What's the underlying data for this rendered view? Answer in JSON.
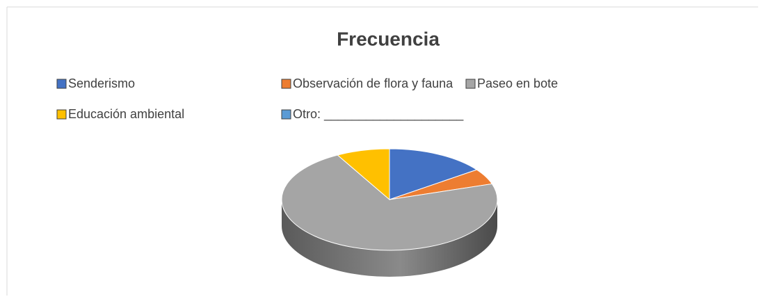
{
  "chart_data": {
    "type": "pie",
    "title": "Frecuencia",
    "categories": [
      "Senderismo",
      "Observación de flora y fauna",
      "Paseo en bote",
      "Educación ambiental",
      "Otro: ____________________"
    ],
    "values": [
      15,
      5,
      72,
      8,
      0
    ],
    "colors": [
      "#4472c4",
      "#ed7d31",
      "#a5a5a5",
      "#ffc000",
      "#5b9bd5"
    ],
    "legend": "top"
  }
}
